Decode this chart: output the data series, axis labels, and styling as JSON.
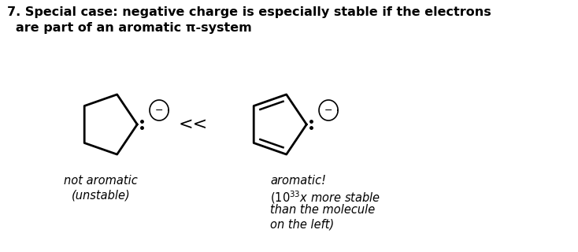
{
  "title_line1": "7. Special case: negative charge is especially stable if the electrons",
  "title_line2": "are part of an aromatic π-system",
  "label_left_line1": "not aromatic",
  "label_left_line2": "(unstable)",
  "label_right_line1": "aromatic!",
  "label_right_line3": "than the molecule",
  "label_right_line4": "on the left)",
  "less_than": "<<",
  "background_color": "#ffffff",
  "text_color": "#000000",
  "title_fontsize": 11.5,
  "label_fontsize": 10.5
}
